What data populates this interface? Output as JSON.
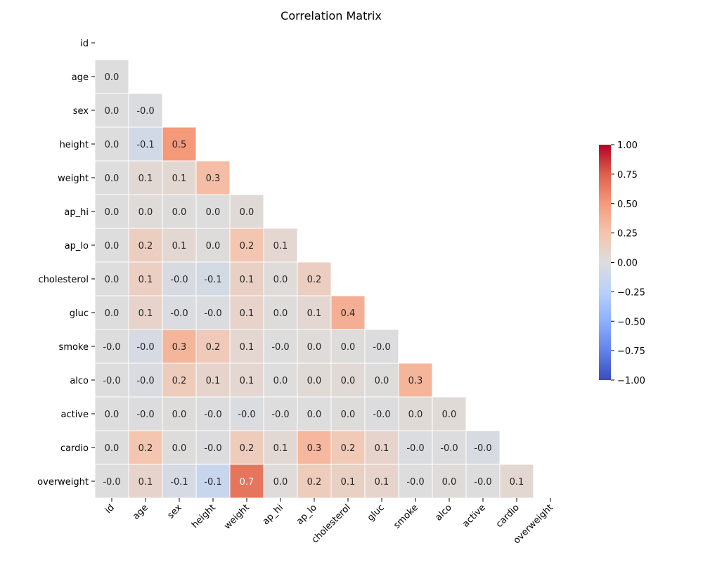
{
  "chart_data": {
    "type": "heatmap",
    "title": "Correlation Matrix",
    "variables": [
      "id",
      "age",
      "sex",
      "height",
      "weight",
      "ap_hi",
      "ap_lo",
      "cholesterol",
      "gluc",
      "smoke",
      "alco",
      "active",
      "cardio",
      "overweight"
    ],
    "mask": "upper-triangle-including-diagonal",
    "value_format": "one-decimal",
    "cells": [
      {
        "row": "age",
        "col": "id",
        "value": 0.0,
        "label": "0.0"
      },
      {
        "row": "sex",
        "col": "id",
        "value": 0.0,
        "label": "0.0"
      },
      {
        "row": "sex",
        "col": "age",
        "value": -0.02,
        "label": "-0.0"
      },
      {
        "row": "height",
        "col": "id",
        "value": 0.0,
        "label": "0.0"
      },
      {
        "row": "height",
        "col": "age",
        "value": -0.08,
        "label": "-0.1"
      },
      {
        "row": "height",
        "col": "sex",
        "value": 0.5,
        "label": "0.5"
      },
      {
        "row": "weight",
        "col": "id",
        "value": 0.0,
        "label": "0.0"
      },
      {
        "row": "weight",
        "col": "age",
        "value": 0.05,
        "label": "0.1"
      },
      {
        "row": "weight",
        "col": "sex",
        "value": 0.06,
        "label": "0.1"
      },
      {
        "row": "weight",
        "col": "height",
        "value": 0.29,
        "label": "0.3"
      },
      {
        "row": "ap_hi",
        "col": "id",
        "value": 0.0,
        "label": "0.0"
      },
      {
        "row": "ap_hi",
        "col": "age",
        "value": 0.02,
        "label": "0.0"
      },
      {
        "row": "ap_hi",
        "col": "sex",
        "value": 0.01,
        "label": "0.0"
      },
      {
        "row": "ap_hi",
        "col": "height",
        "value": 0.0,
        "label": "0.0"
      },
      {
        "row": "ap_hi",
        "col": "weight",
        "value": 0.03,
        "label": "0.0"
      },
      {
        "row": "ap_lo",
        "col": "id",
        "value": 0.0,
        "label": "0.0"
      },
      {
        "row": "ap_lo",
        "col": "age",
        "value": 0.15,
        "label": "0.2"
      },
      {
        "row": "ap_lo",
        "col": "sex",
        "value": 0.06,
        "label": "0.1"
      },
      {
        "row": "ap_lo",
        "col": "height",
        "value": 0.01,
        "label": "0.0"
      },
      {
        "row": "ap_lo",
        "col": "weight",
        "value": 0.23,
        "label": "0.2"
      },
      {
        "row": "ap_lo",
        "col": "ap_hi",
        "value": 0.07,
        "label": "0.1"
      },
      {
        "row": "cholesterol",
        "col": "id",
        "value": 0.0,
        "label": "0.0"
      },
      {
        "row": "cholesterol",
        "col": "age",
        "value": 0.14,
        "label": "0.1"
      },
      {
        "row": "cholesterol",
        "col": "sex",
        "value": -0.04,
        "label": "-0.0"
      },
      {
        "row": "cholesterol",
        "col": "height",
        "value": -0.06,
        "label": "-0.1"
      },
      {
        "row": "cholesterol",
        "col": "weight",
        "value": 0.13,
        "label": "0.1"
      },
      {
        "row": "cholesterol",
        "col": "ap_hi",
        "value": 0.02,
        "label": "0.0"
      },
      {
        "row": "cholesterol",
        "col": "ap_lo",
        "value": 0.15,
        "label": "0.2"
      },
      {
        "row": "gluc",
        "col": "id",
        "value": 0.0,
        "label": "0.0"
      },
      {
        "row": "gluc",
        "col": "age",
        "value": 0.1,
        "label": "0.1"
      },
      {
        "row": "gluc",
        "col": "sex",
        "value": -0.02,
        "label": "-0.0"
      },
      {
        "row": "gluc",
        "col": "height",
        "value": -0.02,
        "label": "-0.0"
      },
      {
        "row": "gluc",
        "col": "weight",
        "value": 0.1,
        "label": "0.1"
      },
      {
        "row": "gluc",
        "col": "ap_hi",
        "value": 0.01,
        "label": "0.0"
      },
      {
        "row": "gluc",
        "col": "ap_lo",
        "value": 0.07,
        "label": "0.1"
      },
      {
        "row": "gluc",
        "col": "cholesterol",
        "value": 0.38,
        "label": "0.4"
      },
      {
        "row": "smoke",
        "col": "id",
        "value": -0.0,
        "label": "-0.0"
      },
      {
        "row": "smoke",
        "col": "age",
        "value": -0.05,
        "label": "-0.0"
      },
      {
        "row": "smoke",
        "col": "sex",
        "value": 0.34,
        "label": "0.3"
      },
      {
        "row": "smoke",
        "col": "height",
        "value": 0.19,
        "label": "0.2"
      },
      {
        "row": "smoke",
        "col": "weight",
        "value": 0.07,
        "label": "0.1"
      },
      {
        "row": "smoke",
        "col": "ap_hi",
        "value": -0.0,
        "label": "-0.0"
      },
      {
        "row": "smoke",
        "col": "ap_lo",
        "value": 0.02,
        "label": "0.0"
      },
      {
        "row": "smoke",
        "col": "cholesterol",
        "value": 0.01,
        "label": "0.0"
      },
      {
        "row": "smoke",
        "col": "gluc",
        "value": -0.01,
        "label": "-0.0"
      },
      {
        "row": "alco",
        "col": "id",
        "value": -0.0,
        "label": "-0.0"
      },
      {
        "row": "alco",
        "col": "age",
        "value": -0.03,
        "label": "-0.0"
      },
      {
        "row": "alco",
        "col": "sex",
        "value": 0.17,
        "label": "0.2"
      },
      {
        "row": "alco",
        "col": "height",
        "value": 0.09,
        "label": "0.1"
      },
      {
        "row": "alco",
        "col": "weight",
        "value": 0.07,
        "label": "0.1"
      },
      {
        "row": "alco",
        "col": "ap_hi",
        "value": 0.0,
        "label": "0.0"
      },
      {
        "row": "alco",
        "col": "ap_lo",
        "value": 0.03,
        "label": "0.0"
      },
      {
        "row": "alco",
        "col": "cholesterol",
        "value": 0.04,
        "label": "0.0"
      },
      {
        "row": "alco",
        "col": "gluc",
        "value": 0.01,
        "label": "0.0"
      },
      {
        "row": "alco",
        "col": "smoke",
        "value": 0.34,
        "label": "0.3"
      },
      {
        "row": "active",
        "col": "id",
        "value": 0.0,
        "label": "0.0"
      },
      {
        "row": "active",
        "col": "age",
        "value": -0.01,
        "label": "-0.0"
      },
      {
        "row": "active",
        "col": "sex",
        "value": 0.01,
        "label": "0.0"
      },
      {
        "row": "active",
        "col": "height",
        "value": -0.01,
        "label": "-0.0"
      },
      {
        "row": "active",
        "col": "weight",
        "value": -0.02,
        "label": "-0.0"
      },
      {
        "row": "active",
        "col": "ap_hi",
        "value": -0.0,
        "label": "-0.0"
      },
      {
        "row": "active",
        "col": "ap_lo",
        "value": 0.0,
        "label": "0.0"
      },
      {
        "row": "active",
        "col": "cholesterol",
        "value": 0.01,
        "label": "0.0"
      },
      {
        "row": "active",
        "col": "gluc",
        "value": -0.01,
        "label": "-0.0"
      },
      {
        "row": "active",
        "col": "smoke",
        "value": 0.03,
        "label": "0.0"
      },
      {
        "row": "active",
        "col": "alco",
        "value": 0.03,
        "label": "0.0"
      },
      {
        "row": "cardio",
        "col": "id",
        "value": 0.0,
        "label": "0.0"
      },
      {
        "row": "cardio",
        "col": "age",
        "value": 0.24,
        "label": "0.2"
      },
      {
        "row": "cardio",
        "col": "sex",
        "value": 0.01,
        "label": "0.0"
      },
      {
        "row": "cardio",
        "col": "height",
        "value": -0.01,
        "label": "-0.0"
      },
      {
        "row": "cardio",
        "col": "weight",
        "value": 0.17,
        "label": "0.2"
      },
      {
        "row": "cardio",
        "col": "ap_hi",
        "value": 0.05,
        "label": "0.1"
      },
      {
        "row": "cardio",
        "col": "ap_lo",
        "value": 0.33,
        "label": "0.3"
      },
      {
        "row": "cardio",
        "col": "cholesterol",
        "value": 0.2,
        "label": "0.2"
      },
      {
        "row": "cardio",
        "col": "gluc",
        "value": 0.09,
        "label": "0.1"
      },
      {
        "row": "cardio",
        "col": "smoke",
        "value": -0.02,
        "label": "-0.0"
      },
      {
        "row": "cardio",
        "col": "alco",
        "value": -0.01,
        "label": "-0.0"
      },
      {
        "row": "cardio",
        "col": "active",
        "value": -0.04,
        "label": "-0.0"
      },
      {
        "row": "overweight",
        "col": "id",
        "value": -0.0,
        "label": "-0.0"
      },
      {
        "row": "overweight",
        "col": "age",
        "value": 0.09,
        "label": "0.1"
      },
      {
        "row": "overweight",
        "col": "sex",
        "value": -0.05,
        "label": "-0.1"
      },
      {
        "row": "overweight",
        "col": "height",
        "value": -0.14,
        "label": "-0.1"
      },
      {
        "row": "overweight",
        "col": "weight",
        "value": 0.66,
        "label": "0.7"
      },
      {
        "row": "overweight",
        "col": "ap_hi",
        "value": 0.02,
        "label": "0.0"
      },
      {
        "row": "overweight",
        "col": "ap_lo",
        "value": 0.17,
        "label": "0.2"
      },
      {
        "row": "overweight",
        "col": "cholesterol",
        "value": 0.13,
        "label": "0.1"
      },
      {
        "row": "overweight",
        "col": "gluc",
        "value": 0.09,
        "label": "0.1"
      },
      {
        "row": "overweight",
        "col": "smoke",
        "value": -0.0,
        "label": "-0.0"
      },
      {
        "row": "overweight",
        "col": "alco",
        "value": 0.02,
        "label": "0.0"
      },
      {
        "row": "overweight",
        "col": "active",
        "value": -0.0,
        "label": "-0.0"
      },
      {
        "row": "overweight",
        "col": "cardio",
        "value": 0.06,
        "label": "0.1"
      }
    ],
    "colorbar": {
      "colormap": "coolwarm",
      "range": [
        -1.0,
        1.0
      ],
      "ticks": [
        -1.0,
        -0.75,
        -0.5,
        -0.25,
        0.0,
        0.25,
        0.5,
        0.75,
        1.0
      ],
      "tick_labels": [
        "−1.00",
        "−0.75",
        "−0.50",
        "−0.25",
        "0.00",
        "0.25",
        "0.50",
        "0.75",
        "1.00"
      ]
    },
    "grid": false
  }
}
